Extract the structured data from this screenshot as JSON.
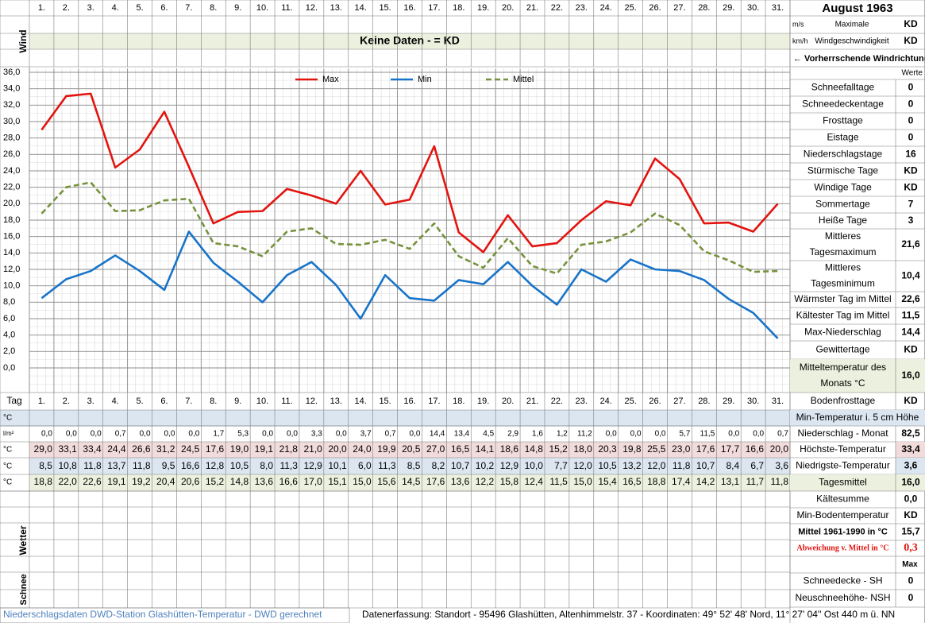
{
  "header": {
    "month": "August 1963",
    "wind_label": "Wind",
    "no_data": "Keine Daten -  = KD",
    "unit_ms": "m/s",
    "unit_kmh": "km/h",
    "max_wind_line1": "Maximale",
    "max_wind_line2": "Windgeschwindigkeit",
    "max_wind_ms": "KD",
    "max_wind_kmh": "KD",
    "wind_direction": "← Vorherrschende Windrichtung",
    "values_header": "Werte"
  },
  "chart_data": {
    "type": "line",
    "categories": [
      "1.",
      "2.",
      "3.",
      "4.",
      "5.",
      "6.",
      "7.",
      "8.",
      "9.",
      "10.",
      "11.",
      "12.",
      "13.",
      "14.",
      "15.",
      "16.",
      "17.",
      "18.",
      "19.",
      "20.",
      "21.",
      "22.",
      "23.",
      "24.",
      "25.",
      "26.",
      "27.",
      "28.",
      "29.",
      "30.",
      "31."
    ],
    "series": [
      {
        "name": "Max",
        "color": "#e3140f",
        "dash": false,
        "values": [
          29.0,
          33.1,
          33.4,
          24.4,
          26.6,
          31.2,
          24.5,
          17.6,
          19.0,
          19.1,
          21.8,
          21.0,
          20.0,
          24.0,
          19.9,
          20.5,
          27.0,
          16.5,
          14.1,
          18.6,
          14.8,
          15.2,
          18.0,
          20.3,
          19.8,
          25.5,
          23.0,
          17.6,
          17.7,
          16.6,
          20.0
        ],
        "value_labels": [
          "29,0",
          "33,1",
          "33,4",
          "24,4",
          "26,6",
          "31,2",
          "24,5",
          "17,6",
          "19,0",
          "19,1",
          "21,8",
          "21,0",
          "20,0",
          "24,0",
          "19,9",
          "20,5",
          "27,0",
          "16,5",
          "14,1",
          "18,6",
          "14,8",
          "15,2",
          "18,0",
          "20,3",
          "19,8",
          "25,5",
          "23,0",
          "17,6",
          "17,7",
          "16,6",
          "20,0"
        ]
      },
      {
        "name": "Min",
        "color": "#1874c9",
        "dash": false,
        "values": [
          8.5,
          10.8,
          11.8,
          13.7,
          11.8,
          9.5,
          16.6,
          12.8,
          10.5,
          8.0,
          11.3,
          12.9,
          10.1,
          6.0,
          11.3,
          8.5,
          8.2,
          10.7,
          10.2,
          12.9,
          10.0,
          7.7,
          12.0,
          10.5,
          13.2,
          12.0,
          11.8,
          10.7,
          8.4,
          6.7,
          3.6
        ],
        "value_labels": [
          "8,5",
          "10,8",
          "11,8",
          "13,7",
          "11,8",
          "9,5",
          "16,6",
          "12,8",
          "10,5",
          "8,0",
          "11,3",
          "12,9",
          "10,1",
          "6,0",
          "11,3",
          "8,5",
          "8,2",
          "10,7",
          "10,2",
          "12,9",
          "10,0",
          "7,7",
          "12,0",
          "10,5",
          "13,2",
          "12,0",
          "11,8",
          "10,7",
          "8,4",
          "6,7",
          "3,6"
        ]
      },
      {
        "name": "Mittel",
        "color": "#76923c",
        "dash": true,
        "values": [
          18.8,
          22.0,
          22.6,
          19.1,
          19.2,
          20.4,
          20.6,
          15.2,
          14.8,
          13.6,
          16.6,
          17.0,
          15.1,
          15.0,
          15.6,
          14.5,
          17.6,
          13.6,
          12.2,
          15.8,
          12.4,
          11.5,
          15.0,
          15.4,
          16.5,
          18.8,
          17.4,
          14.2,
          13.1,
          11.7,
          11.8
        ],
        "value_labels": [
          "18,8",
          "22,0",
          "22,6",
          "19,1",
          "19,2",
          "20,4",
          "20,6",
          "15,2",
          "14,8",
          "13,6",
          "16,6",
          "17,0",
          "15,1",
          "15,0",
          "15,6",
          "14,5",
          "17,6",
          "13,6",
          "12,2",
          "15,8",
          "12,4",
          "11,5",
          "15,0",
          "15,4",
          "16,5",
          "18,8",
          "17,4",
          "14,2",
          "13,1",
          "11,7",
          "11,8"
        ]
      }
    ],
    "ylim": [
      0,
      36
    ],
    "yticks": [
      {
        "value": 0,
        "label": "0,0"
      },
      {
        "value": 2,
        "label": "2,0"
      },
      {
        "value": 4,
        "label": "4,0"
      },
      {
        "value": 6,
        "label": "6,0"
      },
      {
        "value": 8,
        "label": "8,0"
      },
      {
        "value": 10,
        "label": "10,0"
      },
      {
        "value": 12,
        "label": "12,0"
      },
      {
        "value": 14,
        "label": "14,0"
      },
      {
        "value": 16,
        "label": "16,0"
      },
      {
        "value": 18,
        "label": "18,0"
      },
      {
        "value": 20,
        "label": "20,0"
      },
      {
        "value": 22,
        "label": "22,0"
      },
      {
        "value": 24,
        "label": "24,0"
      },
      {
        "value": 26,
        "label": "26,0"
      },
      {
        "value": 28,
        "label": "28,0"
      },
      {
        "value": 30,
        "label": "30,0"
      },
      {
        "value": 32,
        "label": "32,0"
      },
      {
        "value": 34,
        "label": "34,0"
      },
      {
        "value": 36,
        "label": "36,0"
      }
    ],
    "grid": true,
    "legend": "top"
  },
  "table": {
    "day_label": "Tag",
    "unit_temp": "°C",
    "unit_precip": "l/m²",
    "precipitation": [
      "0,0",
      "0,0",
      "0,0",
      "0,7",
      "0,0",
      "0,0",
      "0,0",
      "1,7",
      "5,3",
      "0,0",
      "0,0",
      "3,3",
      "0,0",
      "3,7",
      "0,7",
      "0,0",
      "14,4",
      "13,4",
      "4,5",
      "2,9",
      "1,6",
      "1,2",
      "11,2",
      "0,0",
      "0,0",
      "0,0",
      "5,7",
      "11,5",
      "0,0",
      "0,0",
      "0,7"
    ],
    "weather_label": "Wetter",
    "snow_label": "Schnee"
  },
  "side_stats": [
    {
      "label": [
        "Schneefalltage"
      ],
      "value": "0"
    },
    {
      "label": [
        "Schneedeckentage"
      ],
      "value": "0"
    },
    {
      "label": [
        "Frosttage"
      ],
      "value": "0"
    },
    {
      "label": [
        "Eistage"
      ],
      "value": "0"
    },
    {
      "label": [
        "Niederschlagstage"
      ],
      "value": "16"
    },
    {
      "label": [
        "Stürmische Tage"
      ],
      "value": "KD"
    },
    {
      "label": [
        "Windige Tage"
      ],
      "value": "KD"
    },
    {
      "label": [
        "Sommertage"
      ],
      "value": "7"
    },
    {
      "label": [
        "Heiße Tage"
      ],
      "value": "3"
    },
    {
      "label": [
        "Mittleres",
        "Tagesmaximum"
      ],
      "value": "21,6"
    },
    {
      "label": [
        "Mittleres",
        "Tagesminimum"
      ],
      "value": "10,4"
    },
    {
      "label": [
        "Wärmster Tag im Mittel"
      ],
      "value": "22,6"
    },
    {
      "label": [
        "Kältester Tag im Mittel"
      ],
      "value": "11,5"
    },
    {
      "label": [
        "Max-Niederschlag"
      ],
      "value": "14,4"
    },
    {
      "label": [
        "Gewittertage"
      ],
      "value": "KD"
    },
    {
      "label": [
        "Mitteltemperatur des",
        "Monats °C"
      ],
      "value": "16,0"
    },
    {
      "label": [
        "Bodenfrosttage"
      ],
      "value": "KD"
    },
    {
      "label": [
        "Min-Temperatur i. 5 cm Höhe"
      ]
    },
    {
      "label": [
        "Niederschlag - Monat"
      ],
      "value": "82,5"
    },
    {
      "label": [
        "Höchste-Temperatur"
      ],
      "value": "33,4"
    },
    {
      "label": [
        "Niedrigste-Temperatur"
      ],
      "value": "3,6"
    },
    {
      "label": [
        "Tagesmittel"
      ],
      "value": "16,0"
    },
    {
      "label": [
        "Kältesumme"
      ],
      "value": "0,0"
    },
    {
      "label": [
        "Min-Bodentemperatur"
      ],
      "value": "KD"
    },
    {
      "label": [
        "Mittel 1961-1990 in °C"
      ],
      "value": "15,7"
    },
    {
      "label": [
        "Abweichung v. Mittel in °C"
      ],
      "value": "0,3"
    },
    {
      "value": "Max"
    },
    {
      "label": [
        "Schneedecke -  SH"
      ],
      "value": "0"
    },
    {
      "label": [
        "Neuschneehöhe- NSH"
      ],
      "value": "0"
    }
  ],
  "footer": {
    "left": "Niederschlagsdaten DWD-Station Glashütten-Temperatur -  DWD gerechnet",
    "right": "Datenerfassung: Standort - 95496 Glashütten, Altenhimmelstr. 37 - Koordinaten: 49° 52' 48' Nord,  11° 27' 04'' Ost  440 m ü. NN"
  }
}
